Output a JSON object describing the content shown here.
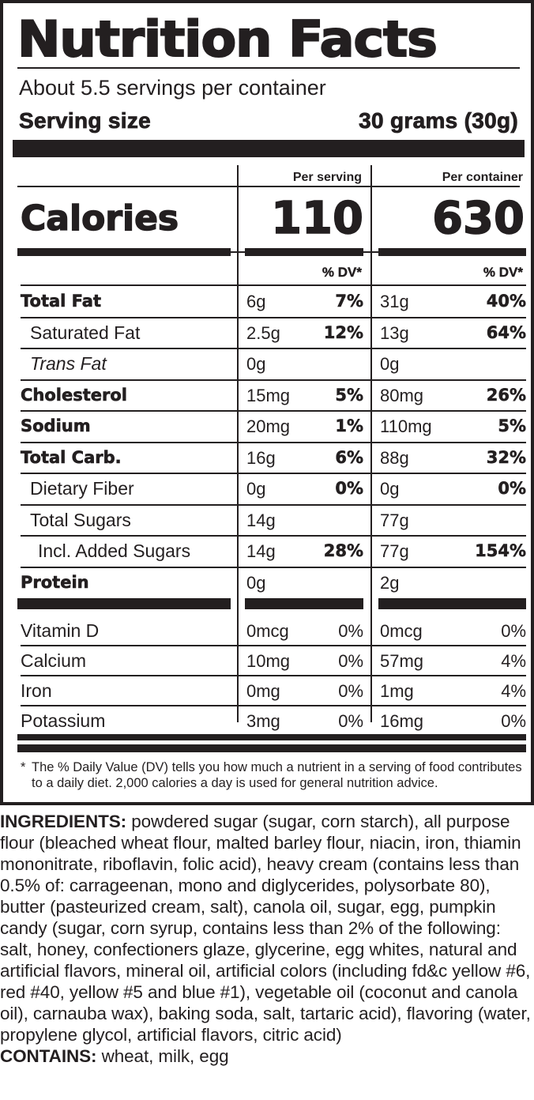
{
  "label": {
    "title": "Nutrition Facts",
    "servings_per_container": "About 5.5 servings per container",
    "serving_size_label": "Serving size",
    "serving_size_value": "30 grams (30g)",
    "column_headers": {
      "per_serving": "Per serving",
      "per_container": "Per container"
    },
    "calories": {
      "label": "Calories",
      "per_serving": "110",
      "per_container": "630"
    },
    "dv_header": "% DV*",
    "nutrients": [
      {
        "name": "Total Fat",
        "style": "bold",
        "serving_amount": "6g",
        "serving_dv": "7%",
        "container_amount": "31g",
        "container_dv": "40%"
      },
      {
        "name": "Saturated Fat",
        "style": "indent1",
        "serving_amount": "2.5g",
        "serving_dv": "12%",
        "container_amount": "13g",
        "container_dv": "64%"
      },
      {
        "name": "Trans Fat",
        "style": "indent1 italic",
        "serving_amount": "0g",
        "serving_dv": "",
        "container_amount": "0g",
        "container_dv": ""
      },
      {
        "name": "Cholesterol",
        "style": "bold",
        "serving_amount": "15mg",
        "serving_dv": "5%",
        "container_amount": "80mg",
        "container_dv": "26%"
      },
      {
        "name": "Sodium",
        "style": "bold",
        "serving_amount": "20mg",
        "serving_dv": "1%",
        "container_amount": "110mg",
        "container_dv": "5%"
      },
      {
        "name": "Total Carb.",
        "style": "bold",
        "serving_amount": "16g",
        "serving_dv": "6%",
        "container_amount": "88g",
        "container_dv": "32%"
      },
      {
        "name": "Dietary Fiber",
        "style": "indent1",
        "serving_amount": "0g",
        "serving_dv": "0%",
        "container_amount": "0g",
        "container_dv": "0%"
      },
      {
        "name": "Total Sugars",
        "style": "indent1",
        "serving_amount": "14g",
        "serving_dv": "",
        "container_amount": "77g",
        "container_dv": ""
      },
      {
        "name": "Incl. Added Sugars",
        "style": "indent2",
        "serving_amount": "14g",
        "serving_dv": "28%",
        "container_amount": "77g",
        "container_dv": "154%"
      },
      {
        "name": "Protein",
        "style": "bold",
        "serving_amount": "0g",
        "serving_dv": "",
        "container_amount": "2g",
        "container_dv": ""
      }
    ],
    "vitamins": [
      {
        "name": "Vitamin D",
        "serving_amount": "0mcg",
        "serving_dv": "0%",
        "container_amount": "0mcg",
        "container_dv": "0%"
      },
      {
        "name": "Calcium",
        "serving_amount": "10mg",
        "serving_dv": "0%",
        "container_amount": "57mg",
        "container_dv": "4%"
      },
      {
        "name": "Iron",
        "serving_amount": "0mg",
        "serving_dv": "0%",
        "container_amount": "1mg",
        "container_dv": "4%"
      },
      {
        "name": "Potassium",
        "serving_amount": "3mg",
        "serving_dv": "0%",
        "container_amount": "16mg",
        "container_dv": "0%"
      }
    ],
    "footnote_star": "*",
    "footnote": "The % Daily Value (DV) tells you how much a nutrient in a serving of food contributes to a daily diet. 2,000 calories a day is used for general nutrition advice."
  },
  "ingredients": {
    "label": "INGREDIENTS:",
    "text": " powdered sugar (sugar, corn starch), all purpose flour (bleached wheat flour, malted barley flour, niacin, iron, thiamin mononitrate, riboflavin, folic acid), heavy cream (contains less than 0.5% of: carrageenan, mono and diglycerides, polysorbate 80), butter (pasteurized cream, salt), canola oil, sugar, egg, pumpkin candy (sugar, corn syrup, contains less than 2% of the following: salt, honey, confectioners glaze, glycerine, egg whites, natural and artificial flavors, mineral oil, artificial colors (including fd&c yellow #6, red #40, yellow #5 and blue #1), vegetable oil (coconut and canola oil), carnauba wax), baking soda, salt, tartaric acid), flavoring (water, propylene glycol, artificial flavors, citric acid)",
    "contains_label": "CONTAINS:",
    "contains_text": " wheat, milk, egg"
  },
  "colors": {
    "ink": "#231f20",
    "background": "#ffffff"
  }
}
